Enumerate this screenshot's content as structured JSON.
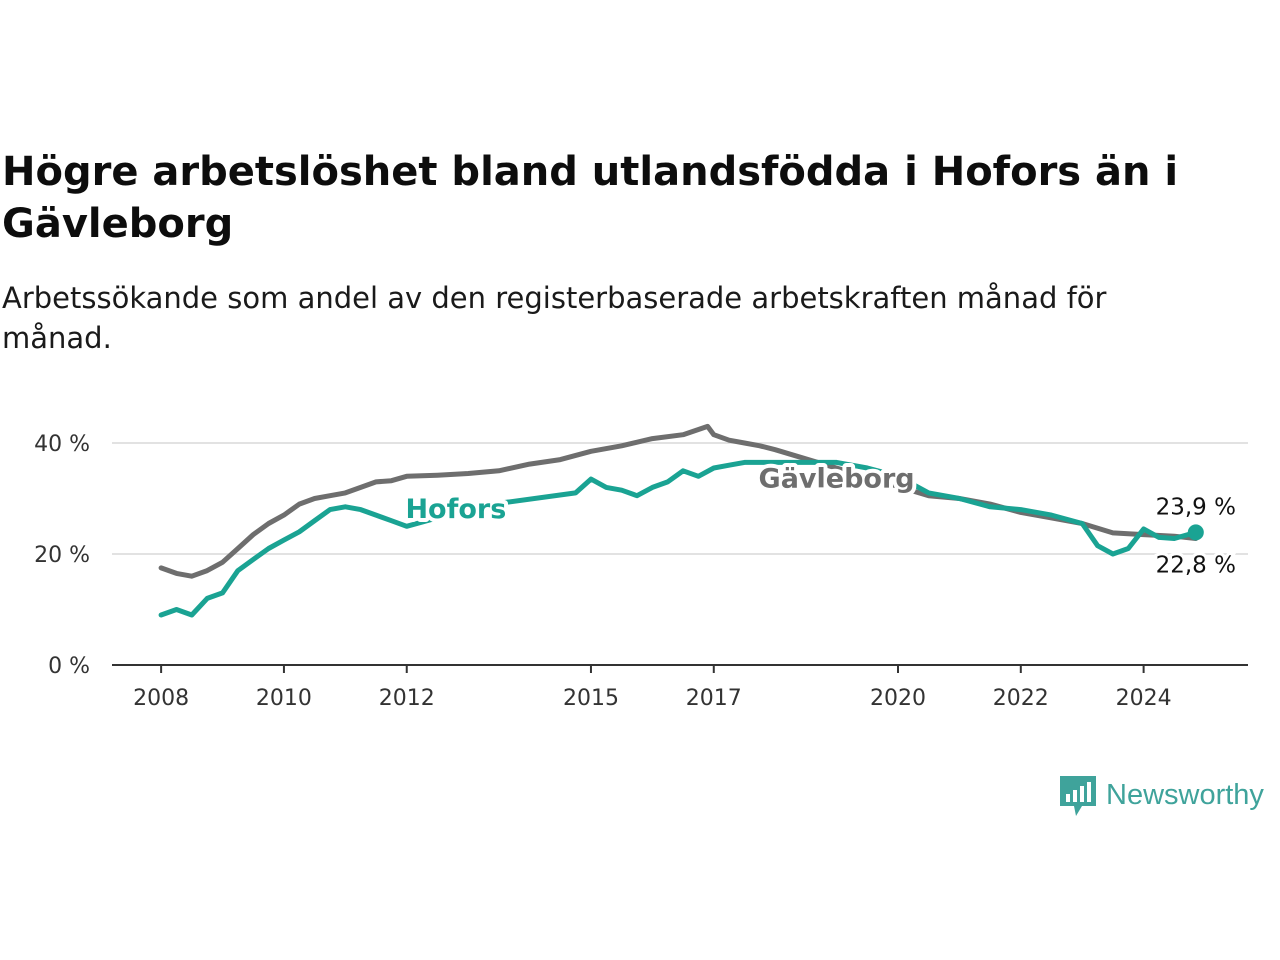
{
  "title": "Högre arbetslöshet bland utlandsfödda i Hofors än i Gävleborg",
  "subtitle": "Arbetssökande som andel av den registerbaserade arbetskraften månad för månad.",
  "brand": {
    "name": "Newsworthy",
    "icon": "newsworthy-logo-icon",
    "color": "#3fa39b"
  },
  "chart_data": {
    "type": "line",
    "ylim": [
      0,
      40
    ],
    "y_ticks": [
      0,
      20,
      40
    ],
    "y_tick_labels": [
      "0 %",
      "20 %",
      "40 %"
    ],
    "x_ticks": [
      2008,
      2010,
      2012,
      2015,
      2017,
      2020,
      2022,
      2024
    ],
    "x_range": [
      2007.2,
      2025.7
    ],
    "grid": true,
    "legend": "inline labels",
    "series": [
      {
        "name": "Gävleborg",
        "color": "#6e6e6e",
        "end_label": "22,8 %",
        "x": [
          2008.0,
          2008.25,
          2008.5,
          2008.75,
          2009.0,
          2009.25,
          2009.5,
          2009.75,
          2010.0,
          2010.25,
          2010.5,
          2010.75,
          2011.0,
          2011.25,
          2011.5,
          2011.75,
          2012.0,
          2012.5,
          2013.0,
          2013.5,
          2014.0,
          2014.5,
          2015.0,
          2015.5,
          2016.0,
          2016.5,
          2016.9,
          2017.0,
          2017.25,
          2017.5,
          2017.75,
          2018.0,
          2020.5,
          2021.0,
          2021.5,
          2022.0,
          2022.5,
          2023.0,
          2023.5,
          2024.0,
          2024.5,
          2024.85
        ],
        "values": [
          17.5,
          16.5,
          16,
          17,
          18.5,
          21,
          23.5,
          25.5,
          27,
          29,
          30,
          30.5,
          31,
          32,
          33,
          33.2,
          34,
          34.2,
          34.5,
          35,
          36.2,
          37,
          38.5,
          39.5,
          40.8,
          41.5,
          43,
          41.5,
          40.5,
          40,
          39.5,
          38.8,
          30.5,
          30,
          29,
          27.5,
          26.5,
          25.5,
          23.8,
          23.5,
          23.2,
          22.8
        ]
      },
      {
        "name": "Hofors",
        "color": "#1aa393",
        "end_label": "23,9 %",
        "x": [
          2008.0,
          2008.25,
          2008.5,
          2008.75,
          2009.0,
          2009.25,
          2009.5,
          2009.75,
          2010.0,
          2010.25,
          2010.5,
          2010.75,
          2011.0,
          2011.25,
          2011.5,
          2011.75,
          2012.0,
          2012.5,
          2012.75,
          2014.75,
          2015.0,
          2015.25,
          2015.5,
          2015.75,
          2016.0,
          2016.25,
          2016.5,
          2016.75,
          2017.0,
          2017.25,
          2017.5,
          2017.75,
          2018.0,
          2018.5,
          2019.0,
          2019.5,
          2020.0,
          2020.5,
          2021.0,
          2021.5,
          2022.0,
          2022.5,
          2023.0,
          2023.25,
          2023.5,
          2023.75,
          2024.0,
          2024.25,
          2024.5,
          2024.85
        ],
        "values": [
          9,
          10,
          9,
          12,
          13,
          17,
          19,
          21,
          22.5,
          24,
          26,
          28,
          28.5,
          28,
          27,
          26,
          25,
          26.5,
          28,
          31,
          33.5,
          32,
          31.5,
          30.5,
          32,
          33,
          35,
          34,
          35.5,
          36,
          36.5,
          36.5,
          36.5,
          36.5,
          36.5,
          35.5,
          34,
          31,
          30,
          28.5,
          28,
          27,
          25.5,
          21.5,
          20,
          21,
          24.5,
          23,
          22.8,
          23.9
        ]
      }
    ],
    "annotations": [
      {
        "text": "Hofors",
        "series": "Hofors",
        "x": 2012.8,
        "y": 28.3
      },
      {
        "text": "Gävleborg",
        "series": "Gävleborg",
        "x": 2019.0,
        "y": 33.8
      }
    ]
  }
}
